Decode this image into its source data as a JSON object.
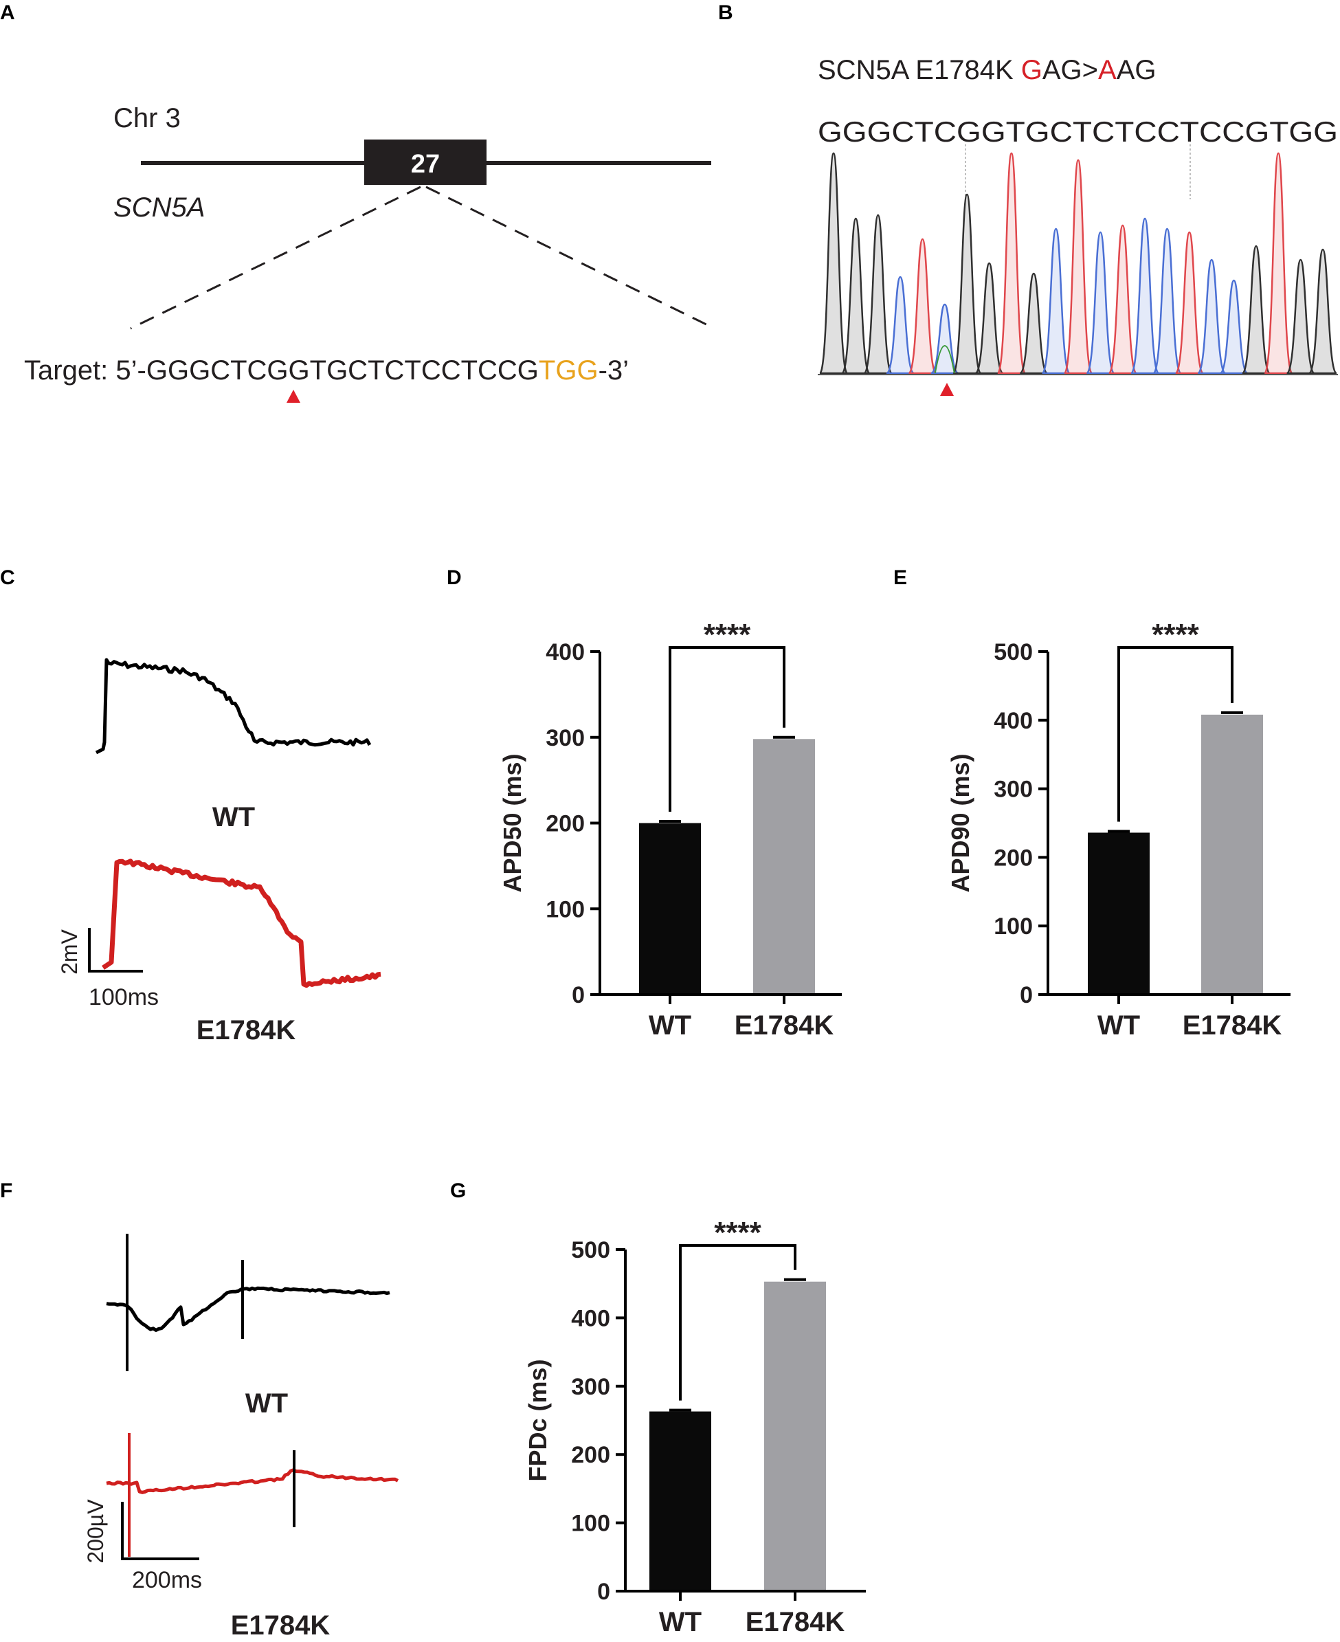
{
  "panels": {
    "A": {
      "label": "A",
      "chr": "Chr 3",
      "gene": "SCN5A",
      "exon": "27",
      "target_prefix": "Target: 5’-",
      "target_seq": "GGGCTCGGTGCTCTCCTCCG",
      "target_pam": "TGG",
      "target_suffix": "-3’"
    },
    "B": {
      "label": "B",
      "mutation_prefix": "SCN5A E1784K ",
      "mut_g": "G",
      "mut_mid": "AG>",
      "mut_a": "A",
      "mut_end": "AG",
      "sequence": "GGGCTCGGTGCTCTCCTCCGTGG",
      "peak_colors": {
        "G": "#303030",
        "C": "#4a6fd4",
        "T": "#e0474c",
        "A": "#3a9a3a"
      }
    },
    "C": {
      "label": "C",
      "wt_label": "WT",
      "mut_label": "E1784K",
      "scale_v": "2mV",
      "scale_t": "100ms",
      "wt_color": "#000000",
      "mut_color": "#d0201f"
    },
    "F": {
      "label": "F",
      "wt_label": "WT",
      "mut_label": "E1784K",
      "scale_v": "200µV",
      "scale_t": "200ms"
    }
  },
  "chart_data": [
    {
      "id": "D",
      "label": "D",
      "type": "bar",
      "categories": [
        "WT",
        "E1784K"
      ],
      "values": [
        200,
        298
      ],
      "errors": [
        2,
        2
      ],
      "ylabel": "APD50 (ms)",
      "ylim": [
        0,
        400
      ],
      "ticks": [
        0,
        100,
        200,
        300,
        400
      ],
      "tick_labels": [
        "0",
        "100",
        "200",
        "300",
        "400"
      ],
      "significance": "****",
      "colors": [
        "#0a0a0a",
        "#a0a0a4"
      ]
    },
    {
      "id": "E",
      "label": "E",
      "type": "bar",
      "categories": [
        "WT",
        "E1784K"
      ],
      "values": [
        236,
        408
      ],
      "errors": [
        2,
        3
      ],
      "ylabel": "APD90 (ms)",
      "ylim": [
        0,
        500
      ],
      "ticks": [
        0,
        100,
        200,
        300,
        400,
        500
      ],
      "tick_labels": [
        "0",
        "100",
        "200",
        "300",
        "400",
        "500"
      ],
      "significance": "****",
      "colors": [
        "#0a0a0a",
        "#a0a0a4"
      ]
    },
    {
      "id": "G",
      "label": "G",
      "type": "bar",
      "categories": [
        "WT",
        "E1784K"
      ],
      "values": [
        263,
        453
      ],
      "errors": [
        2,
        3
      ],
      "ylabel": "FPDc (ms)",
      "ylim": [
        0,
        500
      ],
      "ticks": [
        0,
        100,
        200,
        300,
        400,
        500
      ],
      "tick_labels": [
        "0",
        "100",
        "200",
        "300",
        "400",
        "500"
      ],
      "significance": "****",
      "colors": [
        "#0a0a0a",
        "#a0a0a4"
      ]
    }
  ]
}
